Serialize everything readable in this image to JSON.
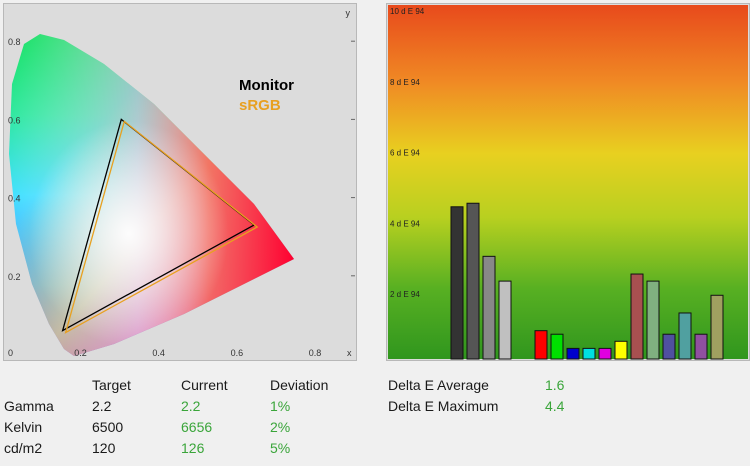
{
  "left_panel": {
    "axis_y_label": "y",
    "axis_x_label": "x",
    "y_ticks": [
      "0.8",
      "0.6",
      "0.4",
      "0.2",
      "0"
    ],
    "x_ticks": [
      "0.2",
      "0.4",
      "0.6",
      "0.8"
    ],
    "legend_monitor": "Monitor",
    "legend_srgb": "sRGB"
  },
  "right_panel": {
    "y_ticks": [
      "10 d E 94",
      "8 d E 94",
      "6 d E 94",
      "4 d E 94",
      "2 d E 94"
    ]
  },
  "chart_data": [
    {
      "type": "scatter",
      "title": "",
      "xlabel": "x",
      "ylabel": "y",
      "xlim": [
        0,
        0.9
      ],
      "ylim": [
        0,
        0.9
      ],
      "series": [
        {
          "name": "Monitor",
          "points": [
            [
              0.3,
              0.6
            ],
            [
              0.64,
              0.33
            ],
            [
              0.15,
              0.06
            ]
          ]
        },
        {
          "name": "sRGB",
          "points": [
            [
              0.3,
              0.6
            ],
            [
              0.64,
              0.33
            ],
            [
              0.15,
              0.06
            ]
          ]
        }
      ]
    },
    {
      "type": "bar",
      "ylim": [
        0,
        10
      ],
      "values": [
        4.3,
        4.4,
        2.9,
        2.2,
        0.8,
        0.7,
        0.3,
        0.3,
        0.3,
        0.5,
        2.4,
        2.2,
        0.7,
        1.3,
        0.7,
        1.8
      ],
      "colors": [
        "#333333",
        "#555555",
        "#888888",
        "#c0c0c0",
        "#ff0000",
        "#00e000",
        "#0000cc",
        "#00e0e0",
        "#e000e0",
        "#ffff00",
        "#a85050",
        "#80b080",
        "#5050a0",
        "#50a0a0",
        "#9050a0",
        "#a0a060"
      ]
    }
  ],
  "stats": {
    "headers": [
      "Target",
      "Current",
      "Deviation"
    ],
    "rows": [
      {
        "label": "Gamma",
        "target": "2.2",
        "current": "2.2",
        "deviation": "1%"
      },
      {
        "label": "Kelvin",
        "target": "6500",
        "current": "6656",
        "deviation": "2%"
      },
      {
        "label": "cd/m2",
        "target": "120",
        "current": "126",
        "deviation": "5%"
      }
    ]
  },
  "delta": {
    "avg_label": "Delta E Average",
    "avg_value": "1.6",
    "max_label": "Delta E Maximum",
    "max_value": "4.4"
  }
}
